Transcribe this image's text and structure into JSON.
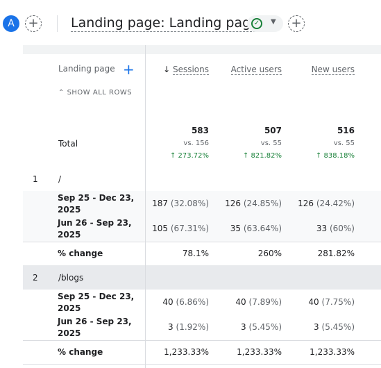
{
  "header": {
    "avatar": "A",
    "title": "Landing page: Landing page"
  },
  "table": {
    "dimension": "Landing page",
    "show_all_rows": "SHOW ALL ROWS",
    "columns": [
      "Sessions",
      "Active users",
      "New users"
    ],
    "total": {
      "label": "Total",
      "values": [
        "583",
        "507",
        "516"
      ],
      "compare": [
        "vs. 156",
        "vs. 55",
        "vs. 55"
      ],
      "change": [
        "273.72%",
        "821.82%",
        "838.18%"
      ]
    },
    "groups": [
      {
        "index": "1",
        "page": "/",
        "rows": [
          {
            "label": "Sep 25 - Dec 23, 2025",
            "cells": [
              {
                "value": "187",
                "pct": "(32.08%)"
              },
              {
                "value": "126",
                "pct": "(24.85%)"
              },
              {
                "value": "126",
                "pct": "(24.42%)"
              }
            ]
          },
          {
            "label": "Jun 26 - Sep 23, 2025",
            "cells": [
              {
                "value": "105",
                "pct": "(67.31%)"
              },
              {
                "value": "35",
                "pct": "(63.64%)"
              },
              {
                "value": "33",
                "pct": "(60%)"
              }
            ]
          }
        ],
        "change_label": "% change",
        "change": [
          "78.1%",
          "260%",
          "281.82%"
        ]
      },
      {
        "index": "2",
        "page": "/blogs",
        "rows": [
          {
            "label": "Sep 25 - Dec 23, 2025",
            "cells": [
              {
                "value": "40",
                "pct": "(6.86%)"
              },
              {
                "value": "40",
                "pct": "(7.89%)"
              },
              {
                "value": "40",
                "pct": "(7.75%)"
              }
            ]
          },
          {
            "label": "Jun 26 - Sep 23, 2025",
            "cells": [
              {
                "value": "3",
                "pct": "(1.92%)"
              },
              {
                "value": "3",
                "pct": "(5.45%)"
              },
              {
                "value": "3",
                "pct": "(5.45%)"
              }
            ]
          }
        ],
        "change_label": "% change",
        "change": [
          "1,233.33%",
          "1,233.33%",
          "1,233.33%"
        ]
      }
    ]
  }
}
